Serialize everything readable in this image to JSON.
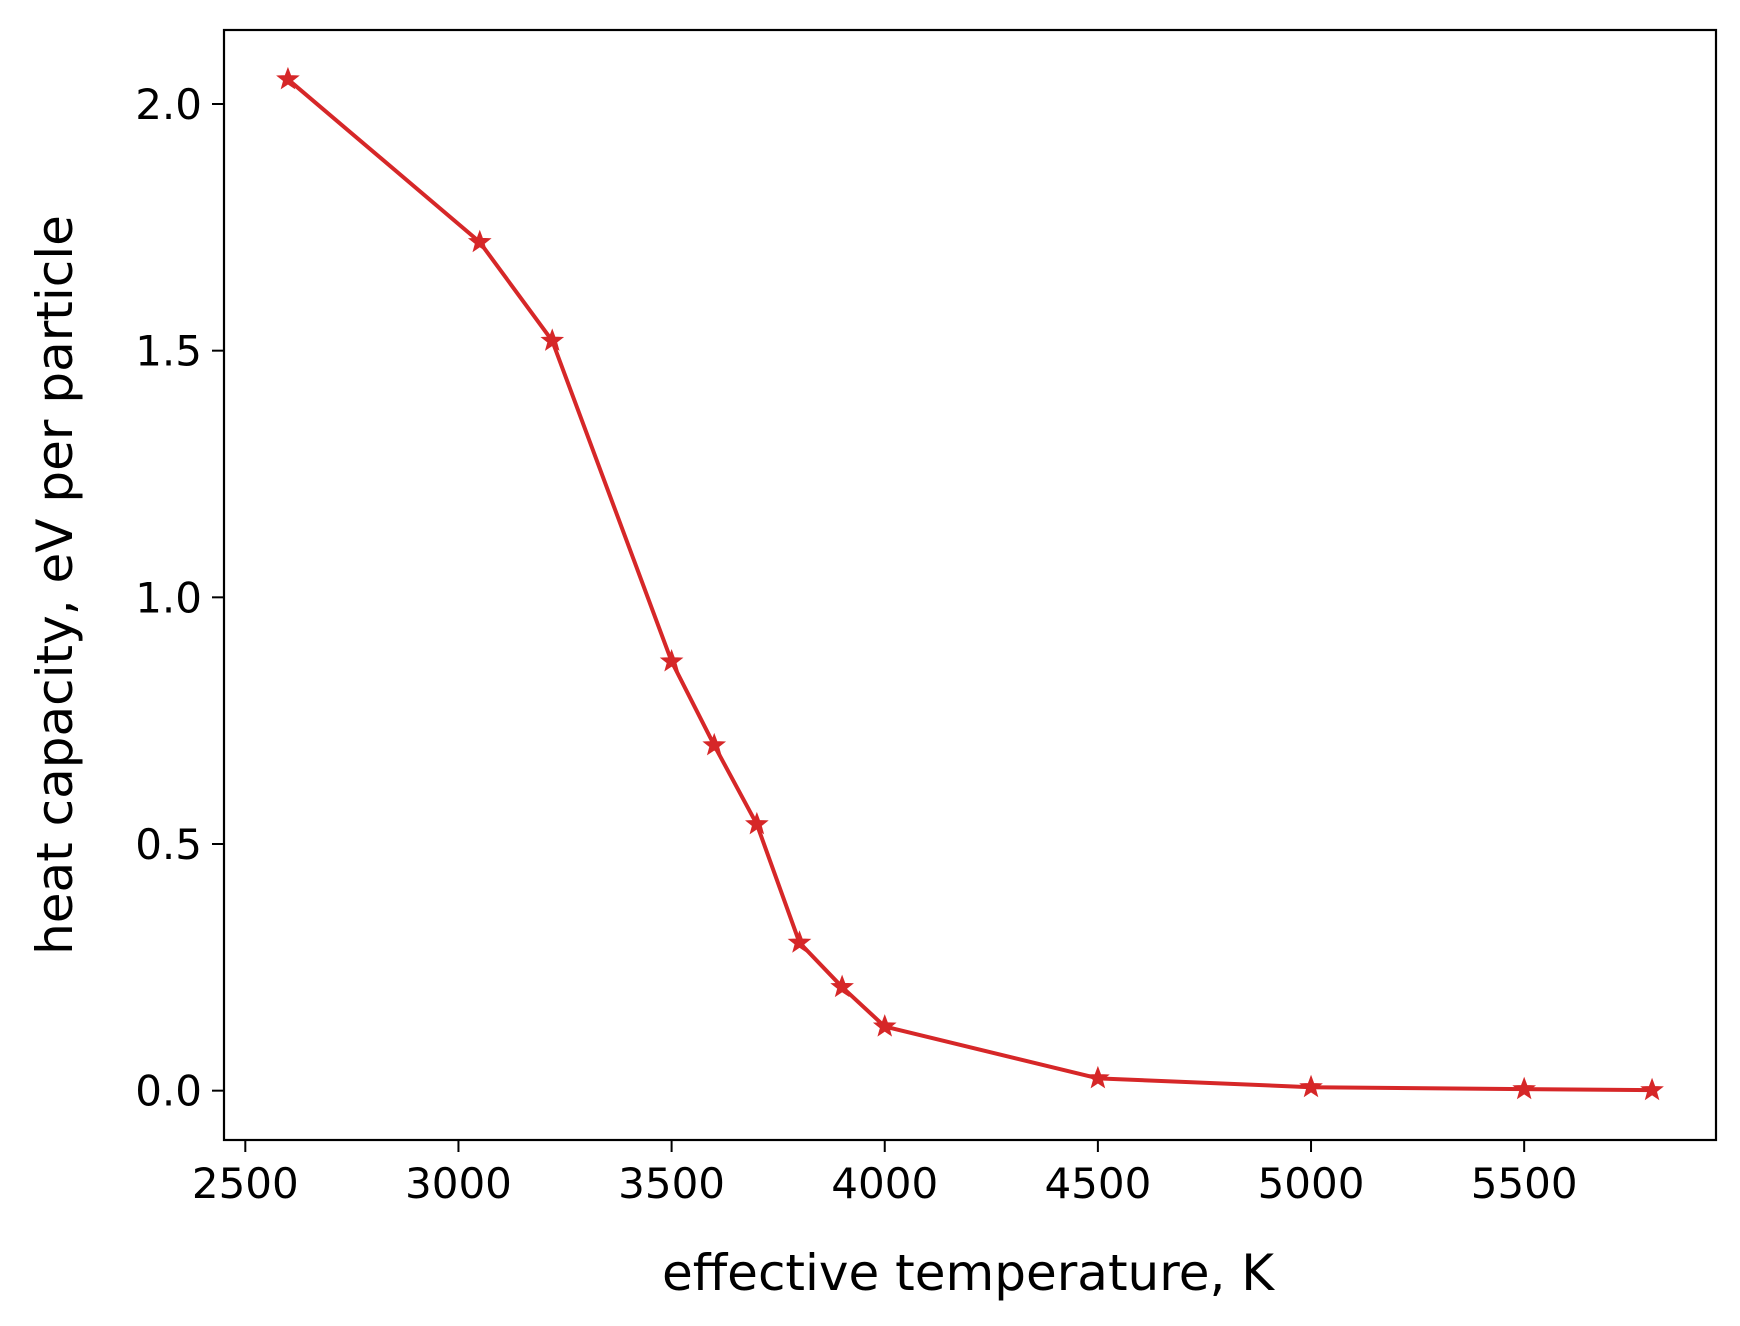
{
  "chart_data": {
    "type": "line",
    "title": "",
    "xlabel": "effective temperature, K",
    "ylabel": "heat capacity, eV per particle",
    "xlim": [
      2450,
      5950
    ],
    "ylim": [
      -0.1,
      2.15
    ],
    "xticks": [
      2500,
      3000,
      3500,
      4000,
      4500,
      5000,
      5500
    ],
    "xtick_labels": [
      "2500",
      "3000",
      "3500",
      "4000",
      "4500",
      "5000",
      "5500"
    ],
    "yticks": [
      0.0,
      0.5,
      1.0,
      1.5,
      2.0
    ],
    "ytick_labels": [
      "0.0",
      "0.5",
      "1.0",
      "1.5",
      "2.0"
    ],
    "grid": false,
    "legend": "none",
    "series": [
      {
        "color": "#d62728",
        "marker": "star",
        "x": [
          2600,
          3050,
          3220,
          3500,
          3600,
          3700,
          3800,
          3900,
          4000,
          4500,
          5000,
          5500,
          5800
        ],
        "y": [
          2.05,
          1.72,
          1.52,
          0.87,
          0.7,
          0.54,
          0.3,
          0.21,
          0.13,
          0.025,
          0.007,
          0.003,
          0.001
        ]
      }
    ]
  }
}
